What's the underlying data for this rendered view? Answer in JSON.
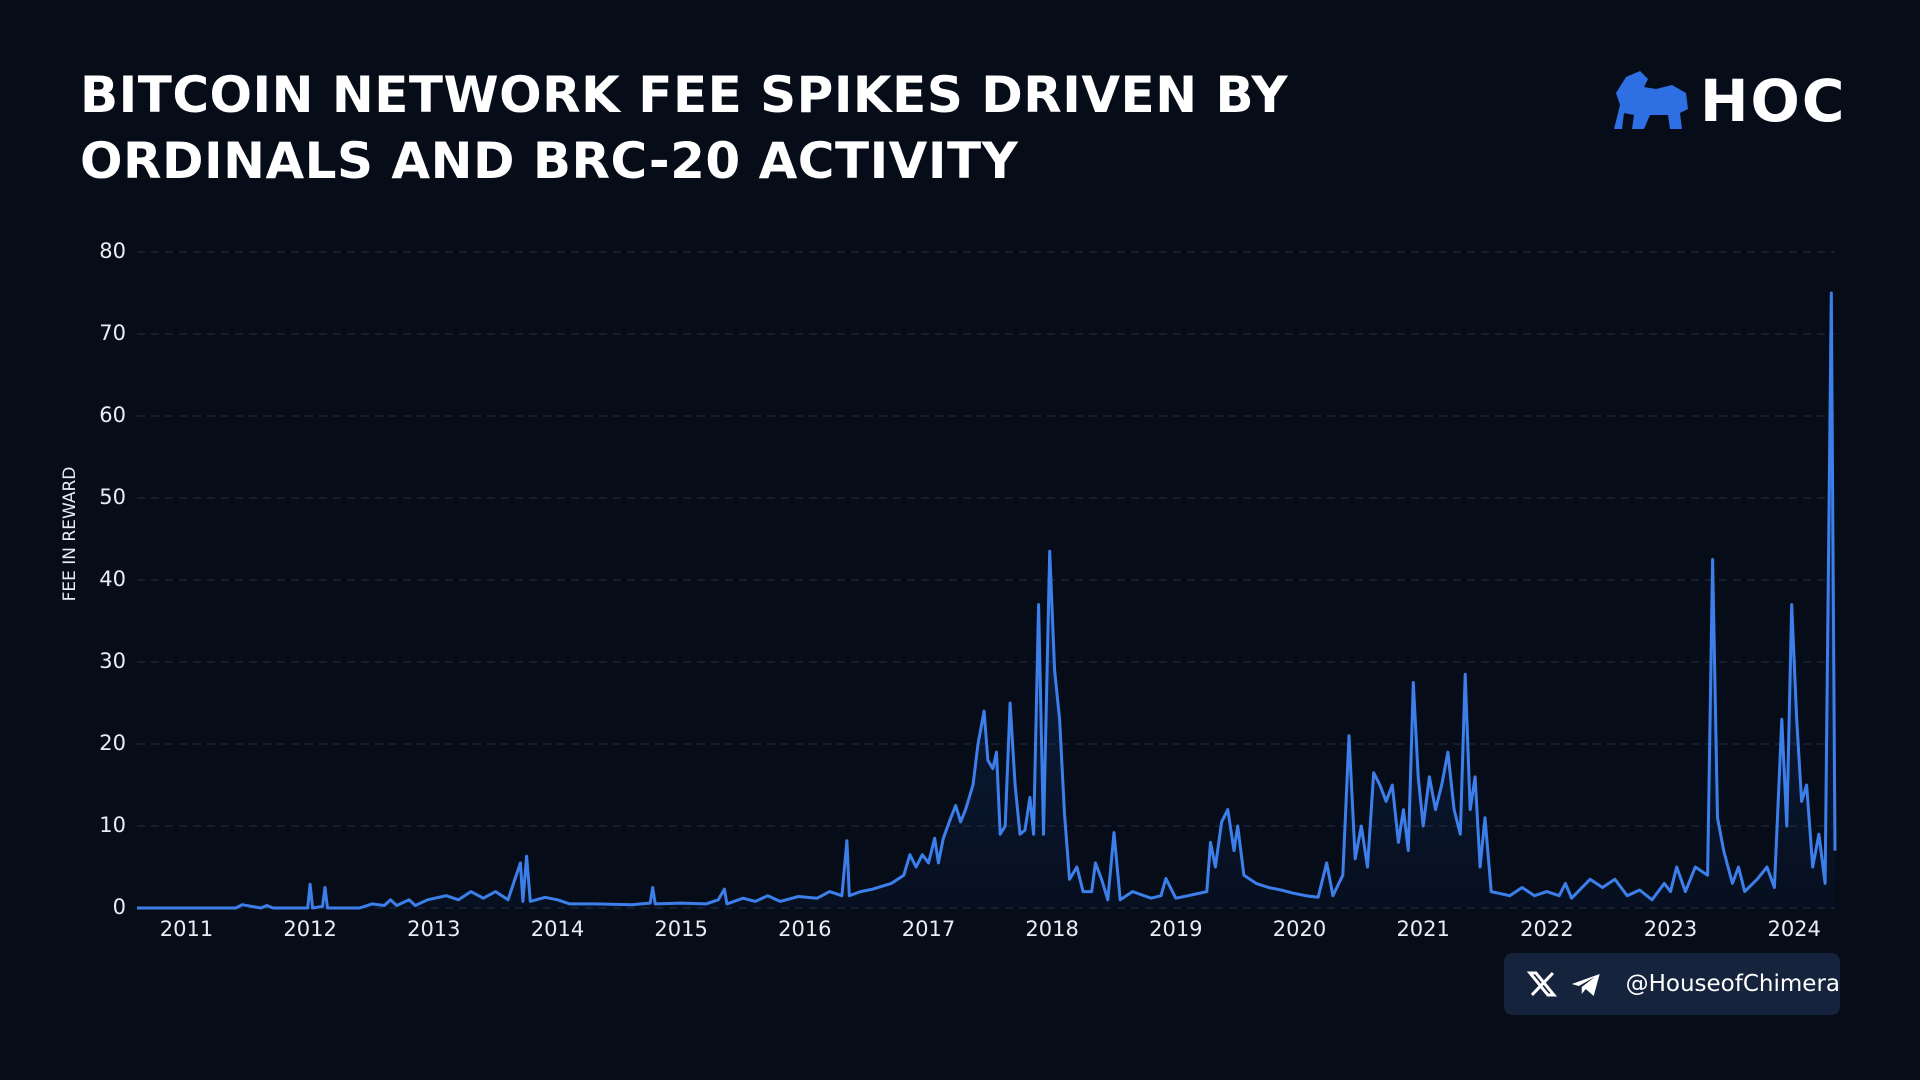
{
  "chart_data": {
    "type": "area",
    "title": "BITCOIN NETWORK FEE SPIKES DRIVEN BY ORDINALS AND BRC-20 ACTIVITY",
    "y_label": "FEE IN REWARD",
    "color": "#3d7fea",
    "grid": true,
    "xlim": [
      2010.6,
      2024.33
    ],
    "ylim": [
      0,
      80
    ],
    "xticks": [
      2011,
      2012,
      2013,
      2014,
      2015,
      2016,
      2017,
      2018,
      2019,
      2020,
      2021,
      2022,
      2023,
      2024
    ],
    "yticks": [
      0,
      10,
      20,
      30,
      40,
      50,
      60,
      70,
      80
    ],
    "x": [
      2010.6,
      2011.0,
      2011.4,
      2011.45,
      2011.6,
      2011.65,
      2011.7,
      2011.98,
      2012.0,
      2012.02,
      2012.1,
      2012.12,
      2012.14,
      2012.4,
      2012.5,
      2012.6,
      2012.65,
      2012.7,
      2012.8,
      2012.85,
      2012.95,
      2013.1,
      2013.2,
      2013.3,
      2013.4,
      2013.5,
      2013.6,
      2013.7,
      2013.72,
      2013.75,
      2013.78,
      2013.9,
      2014.0,
      2014.1,
      2014.3,
      2014.6,
      2014.75,
      2014.77,
      2014.79,
      2015.0,
      2015.2,
      2015.3,
      2015.35,
      2015.37,
      2015.5,
      2015.6,
      2015.7,
      2015.8,
      2015.95,
      2016.1,
      2016.2,
      2016.3,
      2016.34,
      2016.36,
      2016.45,
      2016.55,
      2016.7,
      2016.8,
      2016.85,
      2016.9,
      2016.95,
      2017.0,
      2017.05,
      2017.08,
      2017.12,
      2017.18,
      2017.22,
      2017.26,
      2017.3,
      2017.36,
      2017.4,
      2017.45,
      2017.48,
      2017.52,
      2017.55,
      2017.58,
      2017.62,
      2017.66,
      2017.7,
      2017.74,
      2017.78,
      2017.82,
      2017.85,
      2017.89,
      2017.93,
      2017.98,
      2018.02,
      2018.06,
      2018.1,
      2018.14,
      2018.2,
      2018.25,
      2018.32,
      2018.35,
      2018.4,
      2018.45,
      2018.5,
      2018.55,
      2018.65,
      2018.8,
      2018.88,
      2018.92,
      2019.0,
      2019.1,
      2019.25,
      2019.28,
      2019.32,
      2019.37,
      2019.42,
      2019.47,
      2019.5,
      2019.55,
      2019.65,
      2019.75,
      2019.85,
      2019.95,
      2020.05,
      2020.15,
      2020.22,
      2020.27,
      2020.35,
      2020.4,
      2020.45,
      2020.5,
      2020.55,
      2020.6,
      2020.65,
      2020.7,
      2020.75,
      2020.8,
      2020.84,
      2020.88,
      2020.92,
      2020.96,
      2021.0,
      2021.05,
      2021.1,
      2021.15,
      2021.2,
      2021.25,
      2021.3,
      2021.34,
      2021.38,
      2021.42,
      2021.46,
      2021.5,
      2021.55,
      2021.7,
      2021.8,
      2021.9,
      2022.0,
      2022.1,
      2022.15,
      2022.2,
      2022.35,
      2022.45,
      2022.55,
      2022.65,
      2022.75,
      2022.85,
      2022.95,
      2023.0,
      2023.05,
      2023.12,
      2023.2,
      2023.3,
      2023.34,
      2023.38,
      2023.43,
      2023.5,
      2023.55,
      2023.6,
      2023.7,
      2023.78,
      2023.84,
      2023.9,
      2023.94,
      2023.98,
      2024.02,
      2024.06,
      2024.1,
      2024.15,
      2024.2,
      2024.25,
      2024.3,
      2024.33
    ],
    "values": [
      0,
      0,
      0,
      0.4,
      0,
      0.3,
      0,
      0,
      2.9,
      0,
      0.2,
      2.5,
      0,
      0,
      0.5,
      0.3,
      1,
      0.3,
      1,
      0.3,
      1,
      1.5,
      1,
      2,
      1.2,
      2,
      1,
      5.5,
      0.8,
      6.3,
      0.8,
      1.3,
      1,
      0.5,
      0.5,
      0.4,
      0.6,
      2.5,
      0.5,
      0.6,
      0.5,
      1,
      2.3,
      0.5,
      1.2,
      0.8,
      1.5,
      0.8,
      1.4,
      1.2,
      2,
      1.5,
      8.2,
      1.5,
      2,
      2.3,
      3,
      4,
      6.5,
      5,
      6.5,
      5.5,
      8.5,
      5.5,
      8.5,
      11,
      12.5,
      10.5,
      12,
      15,
      20,
      24,
      18,
      17,
      19,
      9,
      10,
      25,
      15,
      9,
      9.5,
      13.5,
      9,
      37,
      9,
      43.5,
      29,
      23,
      11.5,
      3.5,
      5,
      2,
      2,
      5.5,
      3.5,
      1,
      9.2,
      1,
      2,
      1.2,
      1.5,
      3.6,
      1.2,
      1.5,
      2,
      8,
      5,
      10.5,
      12,
      7,
      10,
      4,
      3,
      2.5,
      2.2,
      1.8,
      1.5,
      1.3,
      5.5,
      1.5,
      4,
      21,
      6,
      10,
      5,
      16.5,
      15,
      13,
      15,
      8,
      12,
      7,
      27.5,
      16,
      10,
      16,
      12,
      15,
      19,
      12,
      9,
      28.5,
      12,
      16,
      5,
      11,
      2,
      1.5,
      2.5,
      1.5,
      2,
      1.5,
      3,
      1.2,
      3.5,
      2.5,
      3.5,
      1.5,
      2.2,
      1,
      3,
      2,
      5,
      2,
      5,
      4,
      42.5,
      11,
      7,
      3,
      5,
      2,
      3.5,
      5,
      2.5,
      23,
      10,
      37,
      23,
      13,
      15,
      5,
      9,
      3,
      75,
      7
    ]
  },
  "brand": {
    "logo_text": "HOC",
    "handle": "@HouseofChimera"
  }
}
